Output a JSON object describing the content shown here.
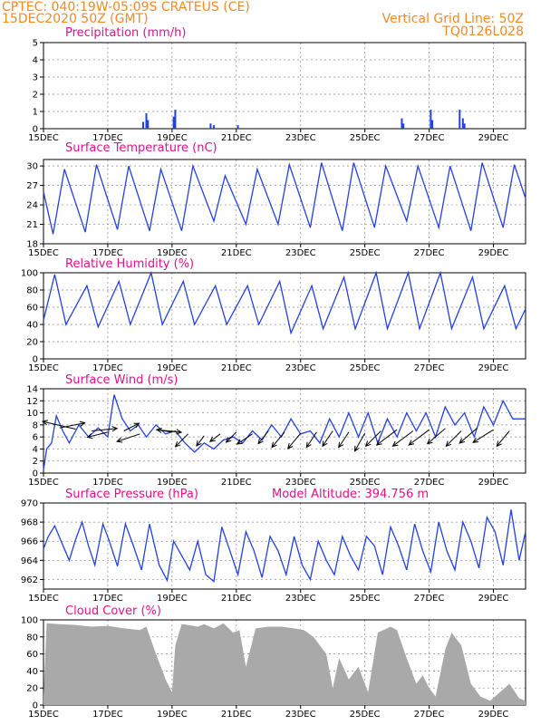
{
  "header": {
    "line1": "CPTEC:   040:19W-05:09S   CRATEUS (CE)",
    "line2": "15DEC2020 50Z (GMT)",
    "grid_note": "Vertical Grid Line: 50Z",
    "code": "TQ0126L028"
  },
  "colors": {
    "header": "#f08a24",
    "title": "#e0118a",
    "line": "#2340e0",
    "cloud": "#a9a9a9",
    "arrow": "#000000"
  },
  "x_axis": {
    "tick_labels": [
      "15DEC",
      "17DEC",
      "19DEC",
      "21DEC",
      "23DEC",
      "25DEC",
      "27DEC",
      "29DEC"
    ],
    "tick_days": [
      0,
      2,
      4,
      6,
      8,
      10,
      12,
      14
    ],
    "range_days": [
      0,
      15
    ]
  },
  "chart_data": [
    {
      "id": "precip",
      "type": "bar",
      "title": "Precipitation (mm/h)",
      "ylim": [
        0,
        5
      ],
      "yticks": [
        0,
        1,
        2,
        3,
        4,
        5
      ],
      "grid": true,
      "x_day": [
        3.1,
        3.2,
        3.25,
        4.05,
        4.1,
        5.2,
        5.3,
        6.05,
        11.15,
        11.2,
        12.05,
        12.1,
        12.95,
        13.05,
        13.1
      ],
      "values": [
        0.4,
        0.9,
        0.5,
        0.7,
        1.1,
        0.3,
        0.2,
        0.2,
        0.6,
        0.3,
        1.1,
        0.5,
        1.1,
        0.6,
        0.3
      ]
    },
    {
      "id": "temp",
      "type": "line",
      "title": "Surface Temperature (nC)",
      "ylim": [
        18,
        31
      ],
      "yticks": [
        18,
        21,
        24,
        27,
        30
      ],
      "grid": true,
      "x_day": [
        0,
        0.3,
        0.65,
        1.3,
        1.65,
        2.3,
        2.65,
        3.3,
        3.65,
        4.3,
        4.65,
        5.3,
        5.65,
        6.3,
        6.65,
        7.3,
        7.65,
        8.3,
        8.65,
        9.3,
        9.65,
        10.3,
        10.65,
        11.3,
        11.65,
        12.3,
        12.65,
        13.3,
        13.65,
        14.3,
        14.65,
        15
      ],
      "values": [
        26,
        19.5,
        29.5,
        19.8,
        30.2,
        20.2,
        30,
        20,
        29.5,
        20,
        30,
        21.5,
        28.5,
        21,
        29.5,
        21,
        30.2,
        20.5,
        30.5,
        20,
        30.5,
        20.5,
        30,
        21.5,
        30,
        20.5,
        30,
        20,
        30.5,
        20.5,
        30.2,
        25
      ]
    },
    {
      "id": "rh",
      "type": "line",
      "title": "Relative Humidity (%)",
      "ylim": [
        0,
        100
      ],
      "yticks": [
        0,
        20,
        40,
        60,
        80,
        100
      ],
      "grid": true,
      "x_day": [
        0,
        0.35,
        0.7,
        1.35,
        1.7,
        2.35,
        2.7,
        3.35,
        3.7,
        4.35,
        4.7,
        5.35,
        5.7,
        6.35,
        6.7,
        7.35,
        7.7,
        8.35,
        8.7,
        9.35,
        9.7,
        10.35,
        10.7,
        11.35,
        11.7,
        12.35,
        12.7,
        13.35,
        13.7,
        14.35,
        14.7,
        15
      ],
      "values": [
        45,
        98,
        40,
        85,
        37,
        90,
        40,
        100,
        40,
        90,
        40,
        85,
        40,
        85,
        40,
        90,
        30,
        85,
        35,
        95,
        35,
        100,
        35,
        100,
        35,
        100,
        35,
        95,
        35,
        85,
        35,
        58
      ]
    },
    {
      "id": "wind",
      "type": "line",
      "title": "Surface Wind (m/s)",
      "ylim": [
        0,
        14
      ],
      "yticks": [
        0,
        2,
        4,
        6,
        8,
        10,
        12,
        14
      ],
      "grid": true,
      "x_day": [
        0,
        0.1,
        0.25,
        0.4,
        0.6,
        0.8,
        1.1,
        1.4,
        1.7,
        2.0,
        2.2,
        2.45,
        2.7,
        2.95,
        3.2,
        3.5,
        3.8,
        4.1,
        4.4,
        4.7,
        5.0,
        5.3,
        5.6,
        5.9,
        6.2,
        6.5,
        6.8,
        7.1,
        7.4,
        7.7,
        8.0,
        8.3,
        8.6,
        8.9,
        9.2,
        9.5,
        9.8,
        10.1,
        10.4,
        10.7,
        11.0,
        11.3,
        11.6,
        11.9,
        12.2,
        12.5,
        12.8,
        13.1,
        13.4,
        13.7,
        14.0,
        14.3,
        14.6,
        15
      ],
      "values": [
        0.5,
        4,
        5,
        9.5,
        7,
        5,
        8,
        6,
        7.5,
        6,
        13,
        9,
        7,
        8,
        6,
        8,
        6.5,
        7,
        5,
        3.5,
        5,
        4,
        5.5,
        6,
        5,
        7,
        5.5,
        8,
        6,
        9,
        6.5,
        7,
        5,
        9,
        6,
        10,
        6,
        10,
        5,
        9,
        6,
        10,
        7,
        10,
        6,
        11,
        8,
        10,
        6,
        11,
        8,
        12,
        9,
        9
      ]
    },
    {
      "id": "wind_vectors",
      "type": "scatter",
      "title": "",
      "x_day": [
        0.5,
        1.0,
        1.5,
        2.0,
        2.5,
        3.0,
        3.5,
        4.0,
        4.5,
        5.0,
        5.5,
        6.0,
        6.5,
        7.0,
        7.5,
        8.0,
        8.5,
        9.0,
        9.5,
        10.0,
        10.5,
        11.0,
        11.5,
        12.0,
        12.5,
        13.0,
        13.5,
        14.0,
        14.5
      ],
      "y_anchor": [
        7.5,
        7.3,
        7.0,
        6.8,
        7.0,
        6.5,
        7.2,
        6.8,
        6.5,
        6.2,
        6.5,
        6.8,
        6.5,
        7.0,
        6.8,
        6.6,
        6.8,
        7.0,
        6.8,
        6.6,
        7.0,
        7.2,
        7.0,
        7.2,
        7.4,
        7.0,
        7.5,
        7.2,
        7.0
      ],
      "u": [
        1.0,
        -1.3,
        1.0,
        -0.8,
        0.6,
        -0.9,
        1.0,
        -0.6,
        -0.5,
        -0.3,
        -0.4,
        -0.4,
        -0.6,
        -0.4,
        -0.5,
        -0.5,
        -0.4,
        -0.4,
        -0.4,
        -0.4,
        -0.6,
        -0.8,
        -0.8,
        -0.8,
        -0.7,
        -0.6,
        -0.7,
        -0.8,
        -0.5
      ],
      "v": [
        0.2,
        0.3,
        0.1,
        -0.2,
        0.3,
        -0.3,
        -0.1,
        0.1,
        -0.5,
        -0.4,
        -0.3,
        -0.4,
        -0.4,
        -0.5,
        -0.6,
        -0.6,
        -0.6,
        -0.6,
        -0.6,
        -0.7,
        -0.6,
        -0.6,
        -0.6,
        -0.6,
        -0.6,
        -0.6,
        -0.6,
        -0.5,
        -0.6
      ]
    },
    {
      "id": "pres",
      "type": "line",
      "title": "Surface Pressure (hPa)",
      "annotation": "Model Altitude: 394.756  m",
      "ylim": [
        961,
        970
      ],
      "yticks": [
        962,
        964,
        966,
        968,
        970
      ],
      "grid": true,
      "x_day": [
        0,
        0.15,
        0.35,
        0.55,
        0.8,
        1.0,
        1.2,
        1.4,
        1.6,
        1.85,
        2.05,
        2.3,
        2.55,
        2.8,
        3.05,
        3.3,
        3.6,
        3.85,
        4.05,
        4.3,
        4.55,
        4.8,
        5.05,
        5.3,
        5.55,
        5.8,
        6.05,
        6.3,
        6.55,
        6.8,
        7.05,
        7.3,
        7.55,
        7.8,
        8.05,
        8.3,
        8.55,
        8.8,
        9.05,
        9.3,
        9.55,
        9.8,
        10.05,
        10.3,
        10.55,
        10.8,
        11.05,
        11.3,
        11.55,
        11.8,
        12.05,
        12.3,
        12.55,
        12.8,
        13.05,
        13.3,
        13.55,
        13.8,
        14.05,
        14.3,
        14.55,
        14.8,
        15
      ],
      "values": [
        965.2,
        966.5,
        967.6,
        966.0,
        964.0,
        966.2,
        968.0,
        965.5,
        963.5,
        967.8,
        966.0,
        963.4,
        967.8,
        965.5,
        963.0,
        967.8,
        963.5,
        961.9,
        966.0,
        964.5,
        963.0,
        966.0,
        962.5,
        961.8,
        967.5,
        965.0,
        962.5,
        967.0,
        965.0,
        962.2,
        966.5,
        965.0,
        962.5,
        966.5,
        963.5,
        962.0,
        966.0,
        964.0,
        962.5,
        966.5,
        964.5,
        963.0,
        966.5,
        965.5,
        962.5,
        967.5,
        965.5,
        963.0,
        967.8,
        965.0,
        962.8,
        968.0,
        965.0,
        963.0,
        968.0,
        966.0,
        963.2,
        968.5,
        967.0,
        963.5,
        969.3,
        964.0,
        967.0
      ]
    },
    {
      "id": "cloud",
      "type": "area",
      "title": "Cloud Cover (%)",
      "ylim": [
        0,
        100
      ],
      "yticks": [
        0,
        20,
        40,
        60,
        80,
        100
      ],
      "grid": true,
      "x_day": [
        0,
        0.1,
        0.5,
        1.0,
        1.5,
        2.0,
        2.5,
        3.0,
        3.2,
        3.5,
        3.8,
        4.0,
        4.1,
        4.3,
        4.5,
        4.8,
        5.0,
        5.3,
        5.6,
        5.9,
        6.1,
        6.3,
        6.6,
        7.0,
        7.4,
        7.8,
        8.1,
        8.4,
        8.8,
        9.0,
        9.2,
        9.5,
        9.8,
        10.1,
        10.4,
        10.8,
        11.0,
        11.3,
        11.6,
        11.8,
        12.0,
        12.2,
        12.5,
        12.7,
        13.0,
        13.3,
        13.6,
        13.9,
        14.2,
        14.5,
        14.8,
        15
      ],
      "values": [
        10,
        96,
        95,
        94,
        92,
        93,
        90,
        88,
        92,
        60,
        30,
        15,
        70,
        95,
        94,
        92,
        95,
        90,
        96,
        85,
        88,
        45,
        90,
        92,
        92,
        90,
        88,
        80,
        60,
        20,
        55,
        30,
        45,
        15,
        85,
        92,
        88,
        55,
        25,
        35,
        20,
        10,
        65,
        85,
        70,
        25,
        10,
        5,
        15,
        25,
        8,
        5
      ]
    }
  ]
}
